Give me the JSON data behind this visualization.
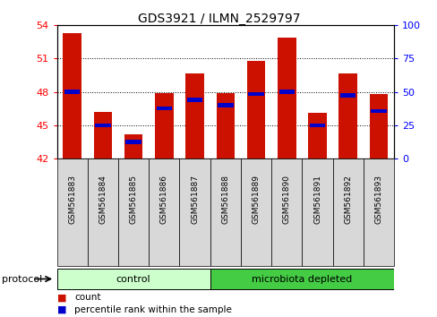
{
  "title": "GDS3921 / ILMN_2529797",
  "samples": [
    "GSM561883",
    "GSM561884",
    "GSM561885",
    "GSM561886",
    "GSM561887",
    "GSM561888",
    "GSM561889",
    "GSM561890",
    "GSM561891",
    "GSM561892",
    "GSM561893"
  ],
  "count_values": [
    53.3,
    46.2,
    44.2,
    47.9,
    49.7,
    47.9,
    50.8,
    52.9,
    46.1,
    49.7,
    47.8
  ],
  "percentile_values": [
    48.0,
    45.0,
    43.5,
    46.5,
    47.3,
    46.8,
    47.8,
    48.0,
    45.0,
    47.7,
    46.3
  ],
  "ymin": 42,
  "ymax": 54,
  "yticks": [
    42,
    45,
    48,
    51,
    54
  ],
  "y2min": 0,
  "y2max": 100,
  "y2ticks": [
    0,
    25,
    50,
    75,
    100
  ],
  "groups": [
    {
      "label": "control",
      "start": 0,
      "end": 5,
      "color": "#ccffcc"
    },
    {
      "label": "microbiota depleted",
      "start": 5,
      "end": 11,
      "color": "#44cc44"
    }
  ],
  "protocol_label": "protocol",
  "bar_color_red": "#cc1100",
  "bar_color_blue": "#0000cc",
  "bar_width": 0.6,
  "background_color": "#ffffff",
  "plot_bg_color": "#ffffff",
  "tick_bg_color": "#d8d8d8",
  "legend_items": [
    {
      "label": "count",
      "color": "#cc1100"
    },
    {
      "label": "percentile rank within the sample",
      "color": "#0000cc"
    }
  ]
}
